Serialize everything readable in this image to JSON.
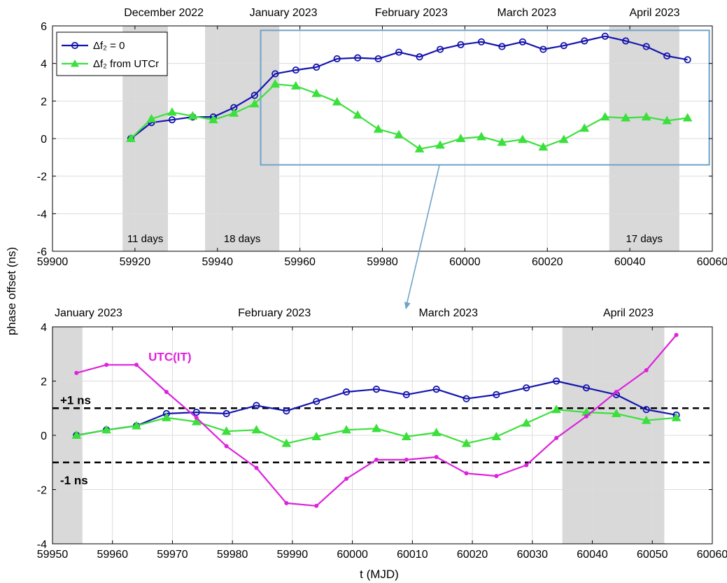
{
  "ylabel": "phase offset (ns)",
  "xlabel": "t (MJD)",
  "colors": {
    "blue": "#1515ad",
    "green": "#3ce03c",
    "magenta": "#dd22dd",
    "shade": "#d9d9d9",
    "zoom_box": "#6fa3c9",
    "grid": "#dcdcdc"
  },
  "chart_data": [
    {
      "type": "line",
      "xlim": [
        59900,
        60060
      ],
      "ylim": [
        -6,
        6
      ],
      "xticks": [
        59900,
        59920,
        59940,
        59960,
        59980,
        60000,
        60020,
        60040,
        60060
      ],
      "yticks": [
        -6,
        -4,
        -2,
        0,
        2,
        4,
        6
      ],
      "grid": true,
      "legend": {
        "placement": "top-left",
        "entries": [
          {
            "label": "Δf₂ = 0",
            "series": 0
          },
          {
            "label": "Δf₂ from UTCr",
            "series": 1
          }
        ]
      },
      "month_labels": [
        {
          "text": "December 2022",
          "mjd": 59927
        },
        {
          "text": "January 2023",
          "mjd": 59956
        },
        {
          "text": "February 2023",
          "mjd": 59987
        },
        {
          "text": "March 2023",
          "mjd": 60015
        },
        {
          "text": "April 2023",
          "mjd": 60046
        }
      ],
      "shaded_spans": [
        {
          "from": 59917,
          "to": 59928,
          "label": "11 days"
        },
        {
          "from": 59937,
          "to": 59955,
          "label": "18 days"
        },
        {
          "from": 60035,
          "to": 60052,
          "label": "17 days"
        }
      ],
      "zoom_box": {
        "x": [
          59951,
          60054
        ],
        "y": [
          -1.4,
          5.8
        ]
      },
      "series": [
        {
          "name": "Δf₂ = 0",
          "color": "#1515ad",
          "marker": "circle",
          "x": [
            59919,
            59924,
            59929,
            59934,
            59939,
            59944,
            59949,
            59954,
            59959,
            59964,
            59969,
            59974,
            59979,
            59984,
            59989,
            59994,
            59999,
            60004,
            60009,
            60014,
            60019,
            60024,
            60029,
            60034,
            60039,
            60044,
            60049,
            60054
          ],
          "y": [
            0.0,
            0.85,
            1.0,
            1.15,
            1.15,
            1.65,
            2.3,
            3.45,
            3.65,
            3.8,
            4.25,
            4.3,
            4.25,
            4.6,
            4.35,
            4.75,
            5.0,
            5.15,
            4.9,
            5.15,
            4.75,
            4.95,
            5.2,
            5.45,
            5.2,
            4.9,
            4.4,
            4.2
          ]
        },
        {
          "name": "Δf₂ from UTCr",
          "color": "#3ce03c",
          "marker": "triangle",
          "x": [
            59919,
            59924,
            59929,
            59934,
            59939,
            59944,
            59949,
            59954,
            59959,
            59964,
            59969,
            59974,
            59979,
            59984,
            59989,
            59994,
            59999,
            60004,
            60009,
            60014,
            60019,
            60024,
            60029,
            60034,
            60039,
            60044,
            60049,
            60054
          ],
          "y": [
            0.0,
            1.05,
            1.4,
            1.2,
            1.0,
            1.35,
            1.85,
            2.9,
            2.8,
            2.4,
            1.95,
            1.25,
            0.5,
            0.2,
            -0.55,
            -0.35,
            0.0,
            0.1,
            -0.2,
            -0.05,
            -0.45,
            -0.05,
            0.55,
            1.15,
            1.1,
            1.15,
            0.95,
            1.1
          ]
        }
      ]
    },
    {
      "type": "line",
      "xlim": [
        59950,
        60060
      ],
      "ylim": [
        -4,
        4
      ],
      "xticks": [
        59950,
        59960,
        59970,
        59980,
        59990,
        60000,
        60010,
        60020,
        60030,
        60040,
        60050,
        60060
      ],
      "yticks": [
        -4,
        -2,
        0,
        2,
        4
      ],
      "grid": true,
      "month_labels": [
        {
          "text": "January 2023",
          "mjd": 59956
        },
        {
          "text": "February 2023",
          "mjd": 59987
        },
        {
          "text": "March 2023",
          "mjd": 60016
        },
        {
          "text": "April 2023",
          "mjd": 60046
        }
      ],
      "shaded_spans": [
        {
          "from": 59950,
          "to": 59955
        },
        {
          "from": 60035,
          "to": 60052
        }
      ],
      "hlines": [
        {
          "y": 1,
          "label": "+1 ns"
        },
        {
          "y": -1,
          "label": "-1 ns"
        }
      ],
      "annotations": [
        {
          "text": "UTC(IT)",
          "x": 59966,
          "y": 2.75
        }
      ],
      "series": [
        {
          "name": "Δf₂ = 0",
          "color": "#1515ad",
          "marker": "circle",
          "x": [
            59954,
            59959,
            59964,
            59969,
            59974,
            59979,
            59984,
            59989,
            59994,
            59999,
            60004,
            60009,
            60014,
            60019,
            60024,
            60029,
            60034,
            60039,
            60044,
            60049,
            60054
          ],
          "y": [
            0.0,
            0.2,
            0.35,
            0.8,
            0.85,
            0.8,
            1.1,
            0.9,
            1.25,
            1.6,
            1.7,
            1.5,
            1.7,
            1.35,
            1.5,
            1.75,
            2.0,
            1.75,
            1.5,
            0.95,
            0.75
          ]
        },
        {
          "name": "Δf₂ from UTCr",
          "color": "#3ce03c",
          "marker": "triangle",
          "x": [
            59954,
            59959,
            59964,
            59969,
            59974,
            59979,
            59984,
            59989,
            59994,
            59999,
            60004,
            60009,
            60014,
            60019,
            60024,
            60029,
            60034,
            60039,
            60044,
            60049,
            60054
          ],
          "y": [
            0.0,
            0.2,
            0.35,
            0.65,
            0.5,
            0.15,
            0.2,
            -0.3,
            -0.05,
            0.2,
            0.25,
            -0.05,
            0.1,
            -0.3,
            -0.05,
            0.45,
            0.95,
            0.85,
            0.8,
            0.55,
            0.65
          ]
        },
        {
          "name": "UTC(IT)",
          "color": "#dd22dd",
          "marker": "dot",
          "x": [
            59954,
            59959,
            59964,
            59969,
            59974,
            59979,
            59984,
            59989,
            59994,
            59999,
            60004,
            60009,
            60014,
            60019,
            60024,
            60029,
            60034,
            60039,
            60044,
            60049,
            60054
          ],
          "y": [
            2.3,
            2.6,
            2.6,
            1.6,
            0.65,
            -0.4,
            -1.2,
            -2.5,
            -2.6,
            -1.6,
            -0.9,
            -0.9,
            -0.8,
            -1.4,
            -1.5,
            -1.1,
            -0.1,
            0.7,
            1.6,
            2.4,
            3.7
          ]
        }
      ]
    }
  ]
}
